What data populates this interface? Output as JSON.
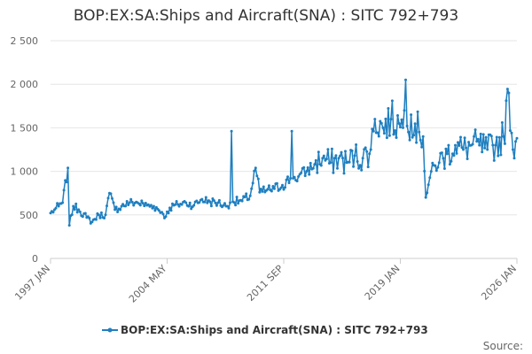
{
  "chart_data": {
    "type": "line",
    "title": "BOP:EX:SA:Ships and Aircraft(SNA) : SITC 792+793",
    "x_range": [
      "1997-01",
      "2026-01"
    ],
    "x_tick_labels": [
      "1997 JAN",
      "2004 MAY",
      "2011 SEP",
      "2019 JAN",
      "2026 JAN"
    ],
    "ylim": [
      0,
      2500
    ],
    "y_ticks": [
      0,
      500,
      1000,
      1500,
      2000,
      2500
    ],
    "y_tick_labels": [
      "0",
      "500",
      "1 000",
      "1 500",
      "2 000",
      "2 500"
    ],
    "grid": "horizontal",
    "legend_position": "bottom",
    "series": [
      {
        "name": "BOP:EX:SA:Ships and Aircraft(SNA) : SITC 792+793",
        "color": "#1f7fc0",
        "anchors": [
          [
            "1997-01",
            520
          ],
          [
            "1997-04",
            560
          ],
          [
            "1997-07",
            600
          ],
          [
            "1997-10",
            640
          ],
          [
            "1998-02",
            1040
          ],
          [
            "1998-03",
            380
          ],
          [
            "1998-06",
            600
          ],
          [
            "1998-10",
            560
          ],
          [
            "1999-04",
            470
          ],
          [
            "1999-08",
            420
          ],
          [
            "2000-01",
            500
          ],
          [
            "2000-06",
            500
          ],
          [
            "2000-09",
            750
          ],
          [
            "2001-01",
            560
          ],
          [
            "2001-06",
            600
          ],
          [
            "2001-12",
            640
          ],
          [
            "2002-06",
            640
          ],
          [
            "2003-01",
            610
          ],
          [
            "2003-06",
            600
          ],
          [
            "2003-12",
            530
          ],
          [
            "2004-03",
            480
          ],
          [
            "2004-06",
            580
          ],
          [
            "2004-12",
            620
          ],
          [
            "2005-06",
            640
          ],
          [
            "2005-12",
            610
          ],
          [
            "2006-06",
            680
          ],
          [
            "2006-12",
            650
          ],
          [
            "2007-06",
            640
          ],
          [
            "2007-12",
            600
          ],
          [
            "2008-03",
            640
          ],
          [
            "2008-04",
            1460
          ],
          [
            "2008-05",
            650
          ],
          [
            "2008-12",
            660
          ],
          [
            "2009-06",
            720
          ],
          [
            "2009-10",
            1040
          ],
          [
            "2010-01",
            760
          ],
          [
            "2010-06",
            780
          ],
          [
            "2010-12",
            800
          ],
          [
            "2011-06",
            840
          ],
          [
            "2011-12",
            920
          ],
          [
            "2012-01",
            1460
          ],
          [
            "2012-02",
            920
          ],
          [
            "2012-06",
            940
          ],
          [
            "2012-12",
            1000
          ],
          [
            "2013-06",
            1080
          ],
          [
            "2013-12",
            1150
          ],
          [
            "2014-06",
            1100
          ],
          [
            "2014-12",
            1150
          ],
          [
            "2015-06",
            1100
          ],
          [
            "2015-12",
            1180
          ],
          [
            "2016-06",
            1150
          ],
          [
            "2016-12",
            1250
          ],
          [
            "2017-03",
            1600
          ],
          [
            "2017-09",
            1500
          ],
          [
            "2018-03",
            1600
          ],
          [
            "2018-09",
            1550
          ],
          [
            "2018-12",
            1500
          ],
          [
            "2019-01",
            1700
          ],
          [
            "2019-02",
            2050
          ],
          [
            "2019-04",
            1450
          ],
          [
            "2019-06",
            1650
          ],
          [
            "2019-12",
            1450
          ],
          [
            "2020-03",
            1400
          ],
          [
            "2020-05",
            700
          ],
          [
            "2020-09",
            1000
          ],
          [
            "2021-03",
            1100
          ],
          [
            "2021-09",
            1200
          ],
          [
            "2022-03",
            1300
          ],
          [
            "2022-09",
            1250
          ],
          [
            "2023-03",
            1300
          ],
          [
            "2023-09",
            1300
          ],
          [
            "2024-03",
            1250
          ],
          [
            "2024-09",
            1300
          ],
          [
            "2025-03",
            1400
          ],
          [
            "2025-07",
            1900
          ],
          [
            "2025-10",
            1250
          ],
          [
            "2026-01",
            1380
          ]
        ]
      }
    ],
    "legend": [
      {
        "label": "BOP:EX:SA:Ships and Aircraft(SNA) : SITC 792+793",
        "color": "#1f7fc0"
      }
    ],
    "source_label": "Source:"
  }
}
